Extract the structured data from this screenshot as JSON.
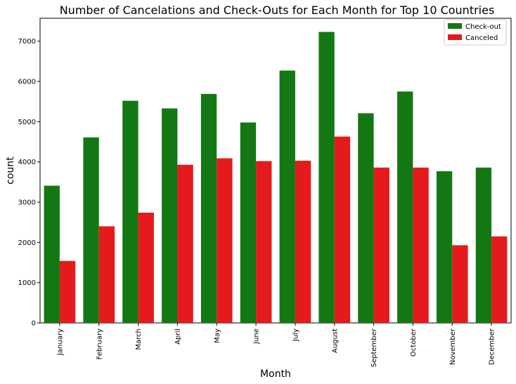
{
  "chart_data": {
    "type": "bar",
    "title": "Number of Cancelations and Check-Outs  for Each Month for Top 10 Countries",
    "xlabel": "Month",
    "ylabel": "count",
    "categories": [
      "January",
      "February",
      "March",
      "April",
      "May",
      "June",
      "July",
      "August",
      "September",
      "October",
      "November",
      "December"
    ],
    "series": [
      {
        "name": "Check-out",
        "color": "#137813",
        "values": [
          3410,
          4610,
          5520,
          5330,
          5690,
          4980,
          6270,
          7230,
          5210,
          5750,
          3770,
          3860
        ]
      },
      {
        "name": "Canceled",
        "color": "#e41a1c",
        "values": [
          1540,
          2400,
          2740,
          3930,
          4090,
          4020,
          4030,
          4630,
          3860,
          3860,
          1930,
          2150
        ]
      }
    ],
    "ylim": [
      0,
      7570
    ],
    "yticks": [
      0,
      1000,
      2000,
      3000,
      4000,
      5000,
      6000,
      7000
    ],
    "grid": false,
    "legend_position": "top-right"
  }
}
